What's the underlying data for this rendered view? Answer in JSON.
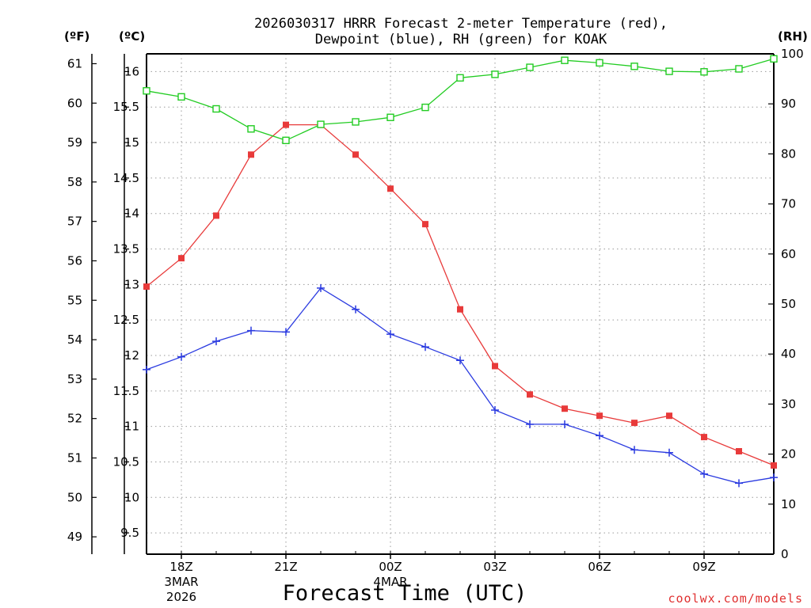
{
  "chart_data": {
    "type": "line",
    "title": [
      "2026030317 HRRR Forecast 2-meter Temperature (red),",
      "Dewpoint (blue), RH (green) for KOAK"
    ],
    "xlabel": "Forecast Time (UTC)",
    "credit": "coolwx.com/models",
    "units": {
      "f": "(ºF)",
      "c": "(ºC)",
      "rh": "(RH)"
    },
    "x": [
      17,
      18,
      19,
      20,
      21,
      22,
      23,
      24,
      25,
      26,
      27,
      28,
      29,
      30,
      31,
      32,
      33,
      34,
      35
    ],
    "xlim": [
      17,
      35
    ],
    "ylim_c": [
      9.2,
      16.25
    ],
    "ylim_rh": [
      0,
      100
    ],
    "x_ticks": [
      {
        "x": 18,
        "label": "18Z",
        "sub": [
          "3MAR",
          "2026"
        ]
      },
      {
        "x": 21,
        "label": "21Z",
        "sub": []
      },
      {
        "x": 24,
        "label": "00Z",
        "sub": [
          "4MAR"
        ]
      },
      {
        "x": 27,
        "label": "03Z",
        "sub": []
      },
      {
        "x": 30,
        "label": "06Z",
        "sub": []
      },
      {
        "x": 33,
        "label": "09Z",
        "sub": []
      }
    ],
    "c_ticks": [
      "9.5",
      "10",
      "10.5",
      "11",
      "11.5",
      "12",
      "12.5",
      "13",
      "13.5",
      "14",
      "14.5",
      "15",
      "15.5",
      "16"
    ],
    "f_ticks": [
      "49",
      "50",
      "51",
      "52",
      "53",
      "54",
      "55",
      "56",
      "57",
      "58",
      "59",
      "60",
      "61"
    ],
    "rh_ticks": [
      "0",
      "10",
      "20",
      "30",
      "40",
      "50",
      "60",
      "70",
      "80",
      "90",
      "100"
    ],
    "series": [
      {
        "name": "Temperature",
        "axis": "c",
        "color": "#e83a3a",
        "marker": "filled-square",
        "values": [
          12.97,
          13.37,
          13.97,
          14.83,
          15.25,
          15.25,
          14.83,
          14.35,
          13.85,
          12.65,
          11.85,
          11.45,
          11.25,
          11.15,
          11.05,
          11.15,
          10.85,
          10.65,
          10.45
        ]
      },
      {
        "name": "Dewpoint",
        "axis": "c",
        "color": "#2a3ae0",
        "marker": "plus",
        "values": [
          11.8,
          11.98,
          12.2,
          12.35,
          12.33,
          12.95,
          12.65,
          12.3,
          12.12,
          11.93,
          11.23,
          11.03,
          11.03,
          10.87,
          10.67,
          10.63,
          10.33,
          10.2,
          10.28
        ]
      },
      {
        "name": "RH",
        "axis": "rh",
        "color": "#22cc22",
        "marker": "open-square",
        "values": [
          92.6,
          91.4,
          89.0,
          85.0,
          82.7,
          85.9,
          86.4,
          87.3,
          89.3,
          95.2,
          95.9,
          97.3,
          98.7,
          98.2,
          97.5,
          96.5,
          96.4,
          97.0,
          99.0
        ]
      }
    ]
  }
}
